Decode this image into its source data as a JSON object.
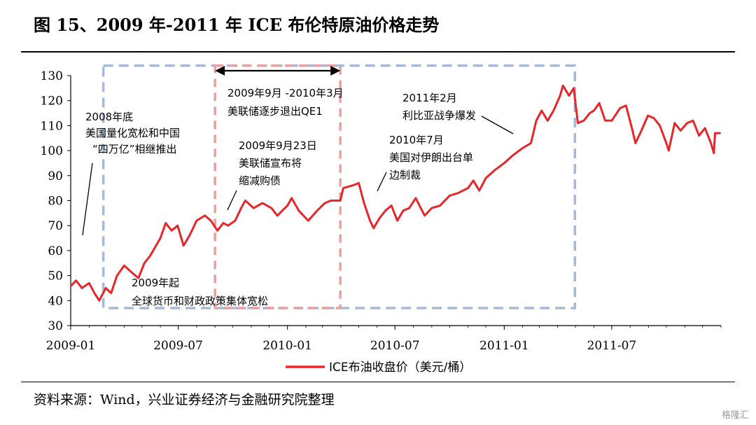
{
  "title": "图 15、2009 年-2011 年 ICE 布伦特原油价格走势",
  "source": "资料来源：Wind，兴业证券经济与金融研究院整理",
  "watermark": "格隆汇",
  "colors": {
    "series": "#e8262a",
    "blue_box": "#a7b9d5",
    "red_box": "#e8a1a1",
    "axis": "#000000"
  },
  "chart_data": {
    "type": "line",
    "title": "",
    "xlabel": "",
    "ylabel": "",
    "ylim": [
      30,
      130
    ],
    "yticks": [
      30,
      40,
      50,
      60,
      70,
      80,
      90,
      100,
      110,
      120,
      130
    ],
    "xticks": [
      "2009-01",
      "2009-07",
      "2010-01",
      "2010-07",
      "2011-01",
      "2011-07"
    ],
    "grid": false,
    "legend_position": "bottom-center",
    "series": [
      {
        "name": "ICE布油收盘价（美元/桶）",
        "color": "#e8262a",
        "points": [
          [
            "2009-01-02",
            46
          ],
          [
            "2009-01-10",
            48
          ],
          [
            "2009-01-20",
            45
          ],
          [
            "2009-02-01",
            47
          ],
          [
            "2009-02-10",
            43
          ],
          [
            "2009-02-18",
            40
          ],
          [
            "2009-03-01",
            45
          ],
          [
            "2009-03-10",
            43
          ],
          [
            "2009-03-20",
            50
          ],
          [
            "2009-04-01",
            54
          ],
          [
            "2009-04-15",
            51
          ],
          [
            "2009-04-25",
            49
          ],
          [
            "2009-05-05",
            55
          ],
          [
            "2009-05-15",
            58
          ],
          [
            "2009-06-01",
            65
          ],
          [
            "2009-06-10",
            71
          ],
          [
            "2009-06-20",
            68
          ],
          [
            "2009-06-30",
            70
          ],
          [
            "2009-07-10",
            62
          ],
          [
            "2009-07-20",
            66
          ],
          [
            "2009-08-01",
            72
          ],
          [
            "2009-08-15",
            74
          ],
          [
            "2009-08-25",
            72
          ],
          [
            "2009-09-05",
            68
          ],
          [
            "2009-09-15",
            71
          ],
          [
            "2009-09-23",
            70
          ],
          [
            "2009-10-05",
            72
          ],
          [
            "2009-10-15",
            77
          ],
          [
            "2009-10-22",
            80
          ],
          [
            "2009-11-05",
            77
          ],
          [
            "2009-11-20",
            79
          ],
          [
            "2009-12-05",
            77
          ],
          [
            "2009-12-15",
            74
          ],
          [
            "2010-01-01",
            78
          ],
          [
            "2010-01-08",
            81
          ],
          [
            "2010-01-20",
            76
          ],
          [
            "2010-02-05",
            72
          ],
          [
            "2010-02-20",
            76
          ],
          [
            "2010-03-05",
            79
          ],
          [
            "2010-03-15",
            80
          ],
          [
            "2010-03-31",
            80
          ],
          [
            "2010-04-05",
            85
          ],
          [
            "2010-04-20",
            86
          ],
          [
            "2010-05-01",
            87
          ],
          [
            "2010-05-10",
            79
          ],
          [
            "2010-05-20",
            72
          ],
          [
            "2010-05-26",
            69
          ],
          [
            "2010-06-05",
            73
          ],
          [
            "2010-06-15",
            76
          ],
          [
            "2010-06-25",
            78
          ],
          [
            "2010-07-05",
            72
          ],
          [
            "2010-07-15",
            76
          ],
          [
            "2010-07-25",
            77
          ],
          [
            "2010-08-05",
            81
          ],
          [
            "2010-08-20",
            74
          ],
          [
            "2010-09-01",
            77
          ],
          [
            "2010-09-15",
            78
          ],
          [
            "2010-10-01",
            82
          ],
          [
            "2010-10-15",
            83
          ],
          [
            "2010-11-01",
            85
          ],
          [
            "2010-11-10",
            88
          ],
          [
            "2010-11-20",
            84
          ],
          [
            "2010-12-01",
            89
          ],
          [
            "2010-12-15",
            92
          ],
          [
            "2011-01-01",
            95
          ],
          [
            "2011-01-15",
            98
          ],
          [
            "2011-02-01",
            101
          ],
          [
            "2011-02-15",
            103
          ],
          [
            "2011-02-24",
            112
          ],
          [
            "2011-03-05",
            116
          ],
          [
            "2011-03-15",
            112
          ],
          [
            "2011-03-25",
            116
          ],
          [
            "2011-04-05",
            122
          ],
          [
            "2011-04-10",
            126
          ],
          [
            "2011-04-20",
            122
          ],
          [
            "2011-04-28",
            125
          ],
          [
            "2011-05-05",
            111
          ],
          [
            "2011-05-15",
            112
          ],
          [
            "2011-05-25",
            115
          ],
          [
            "2011-06-01",
            116
          ],
          [
            "2011-06-10",
            119
          ],
          [
            "2011-06-20",
            112
          ],
          [
            "2011-07-01",
            112
          ],
          [
            "2011-07-15",
            117
          ],
          [
            "2011-07-25",
            118
          ],
          [
            "2011-08-05",
            108
          ],
          [
            "2011-08-10",
            103
          ],
          [
            "2011-08-20",
            108
          ],
          [
            "2011-08-31",
            114
          ],
          [
            "2011-09-10",
            113
          ],
          [
            "2011-09-20",
            110
          ],
          [
            "2011-10-01",
            103
          ],
          [
            "2011-10-05",
            100
          ],
          [
            "2011-10-15",
            111
          ],
          [
            "2011-10-25",
            108
          ],
          [
            "2011-11-05",
            111
          ],
          [
            "2011-11-15",
            112
          ],
          [
            "2011-11-25",
            106
          ],
          [
            "2011-12-05",
            109
          ],
          [
            "2011-12-15",
            103
          ],
          [
            "2011-12-20",
            99
          ],
          [
            "2011-12-22",
            107
          ],
          [
            "2011-12-30",
            107
          ]
        ]
      }
    ],
    "shaded_periods": [
      {
        "style": "blue-dashed",
        "start": "2009-02-25",
        "end": "2011-04-30",
        "ymin": 37,
        "ymax": 134
      },
      {
        "style": "red-dashed",
        "start": "2009-09-01",
        "end": "2010-03-31",
        "ymin": 37,
        "ymax": 134
      }
    ],
    "annotations": [
      {
        "id": "qe1",
        "lines": [
          "2009年9月 -2010年3月",
          "美联储逐步退出QE1"
        ]
      },
      {
        "id": "y2008",
        "lines": [
          "2008年底",
          "美国量化宽松和中国",
          "“四万亿”相继推出"
        ]
      },
      {
        "id": "sep23",
        "lines": [
          "2009年9月23日",
          "美联储宣布将",
          "缩减购债"
        ]
      },
      {
        "id": "libya",
        "lines": [
          "2011年2月",
          "利比亚战争爆发"
        ]
      },
      {
        "id": "iran",
        "lines": [
          "2010年7月",
          "美国对伊朗出台单",
          "边制裁"
        ]
      },
      {
        "id": "global",
        "lines": [
          "2009年起",
          "全球货币和财政政策集体宽松"
        ]
      }
    ]
  }
}
